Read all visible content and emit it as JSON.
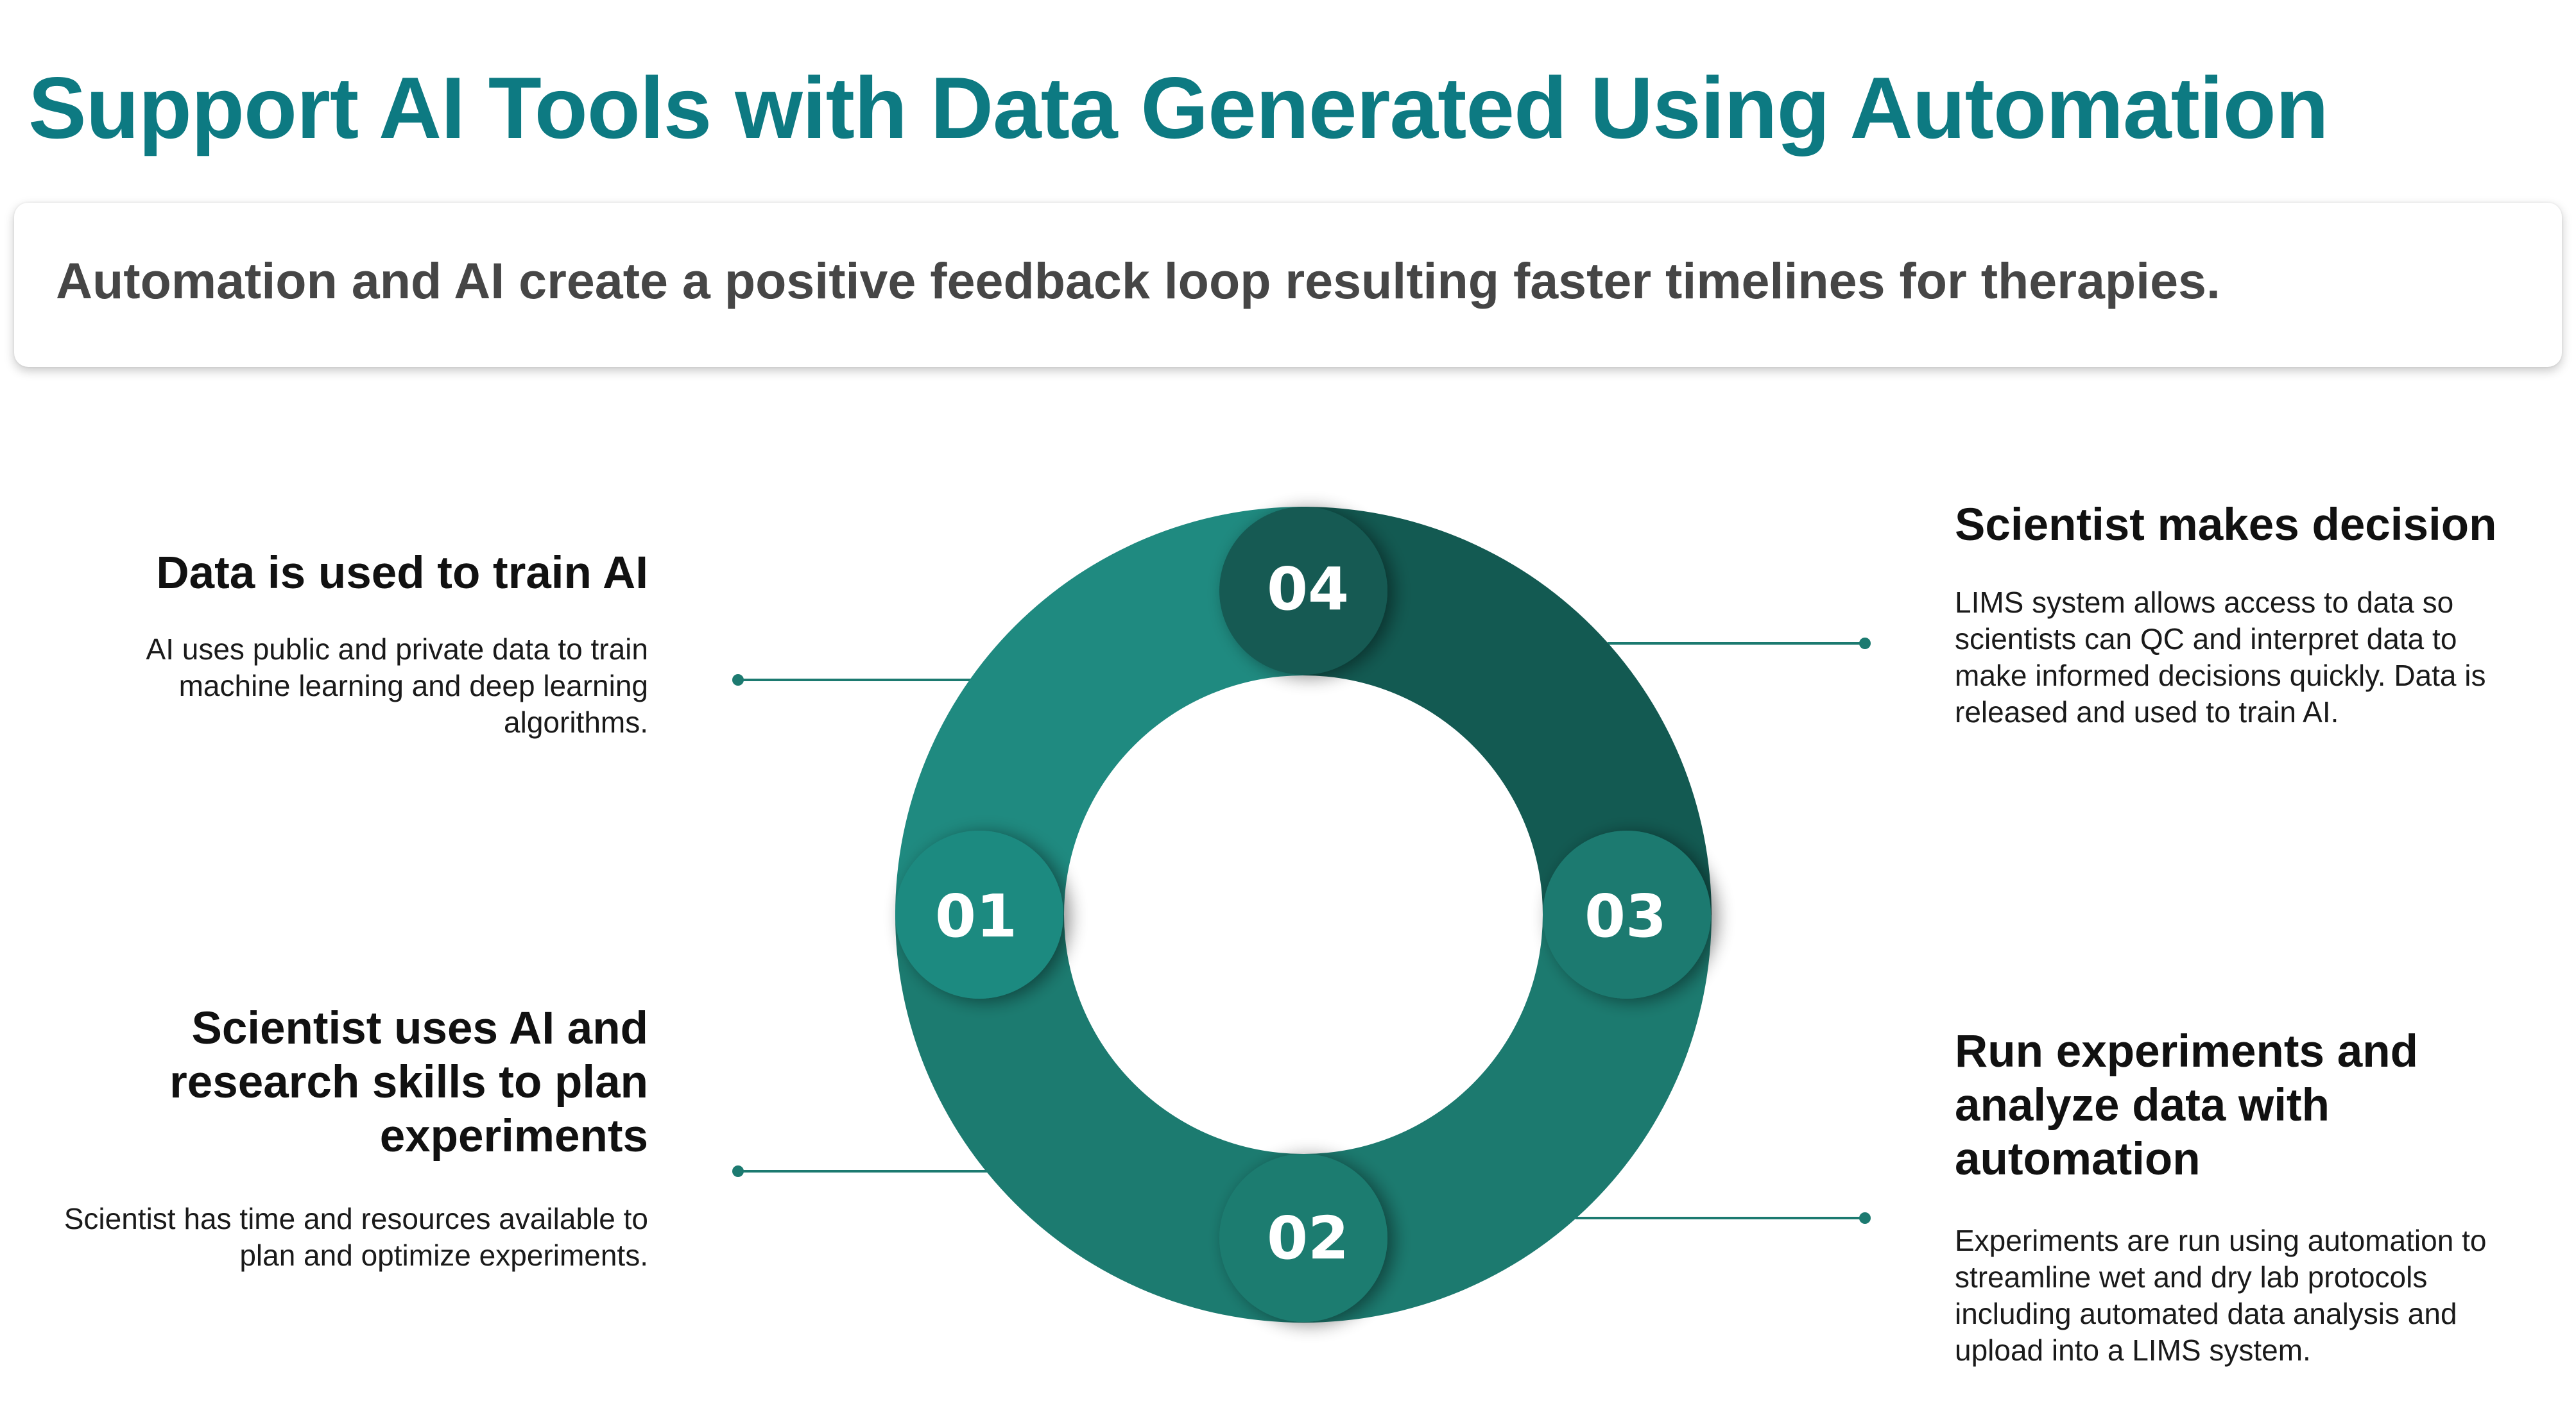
{
  "title": "Support AI Tools with Data Generated Using Automation",
  "subtitle": "Automation and AI create a positive feedback loop resulting faster timelines for therapies.",
  "colors": {
    "title": "#0d7a82",
    "segment_01": "#1f8a80",
    "segment_02": "#1c7b70",
    "segment_03": "#1c7a6f",
    "segment_04": "#135a52",
    "connector": "#1c7a70"
  },
  "steps": [
    {
      "number": "01",
      "heading": "Data is used to train AI",
      "description": "AI uses public and private data to train machine learning and deep learning algorithms."
    },
    {
      "number": "02",
      "heading": "Scientist uses AI and research skills to plan experiments",
      "description": "Scientist has time and resources available to plan and optimize experiments."
    },
    {
      "number": "03",
      "heading": "Run experiments and analyze data with automation",
      "description": "Experiments are run using automation to streamline wet and dry lab protocols including automated data analysis and upload into a LIMS system."
    },
    {
      "number": "04",
      "heading": "Scientist makes decision",
      "description": "LIMS system allows access to data so scientists can QC and interpret data to make informed decisions quickly. Data is released and used to train AI."
    }
  ]
}
